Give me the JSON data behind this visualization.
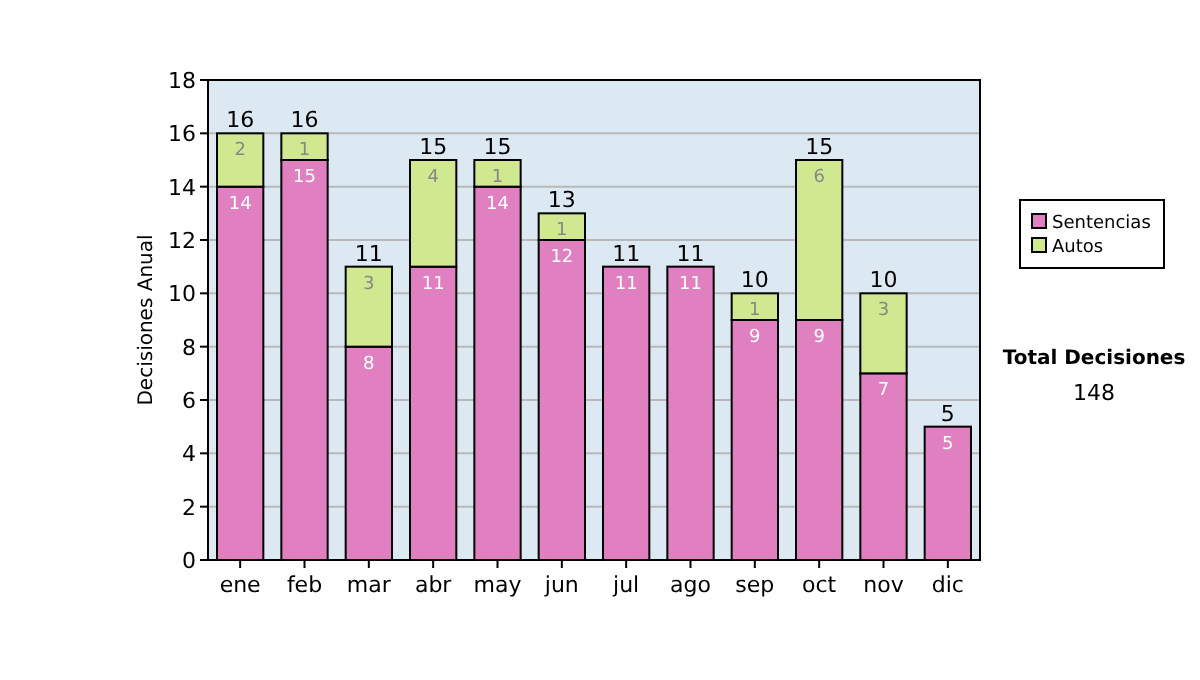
{
  "chart_data": {
    "type": "bar",
    "stacked": true,
    "ylabel": "Decisiones Anual",
    "categories": [
      "ene",
      "feb",
      "mar",
      "abr",
      "may",
      "jun",
      "jul",
      "ago",
      "sep",
      "oct",
      "nov",
      "dic"
    ],
    "series": [
      {
        "name": "Sentencias",
        "color": "#e080c0",
        "values": [
          14,
          15,
          8,
          11,
          14,
          12,
          11,
          11,
          9,
          9,
          7,
          5
        ],
        "value_labels": [
          "14",
          "15",
          "8",
          "11",
          "14",
          "12",
          "11",
          "11",
          "9",
          "9",
          "7",
          "5"
        ]
      },
      {
        "name": "Autos",
        "color": "#d0e890",
        "values": [
          2,
          1,
          3,
          4,
          1,
          1,
          0,
          0,
          1,
          6,
          3,
          0
        ],
        "value_labels": [
          "2",
          "1",
          "3",
          "4",
          "1",
          "1",
          null,
          null,
          "1",
          "6",
          "3",
          null
        ]
      }
    ],
    "totals": [
      "16",
      "16",
      "11",
      "15",
      "15",
      "13",
      "11",
      "11",
      "10",
      "15",
      "10",
      "5"
    ],
    "ylim": [
      0,
      18
    ],
    "yticks": [
      0,
      2,
      4,
      6,
      8,
      10,
      12,
      14,
      16,
      18
    ],
    "grid": "y",
    "legend": "right",
    "annotations": [
      "Total Decisiones",
      "148"
    ]
  }
}
